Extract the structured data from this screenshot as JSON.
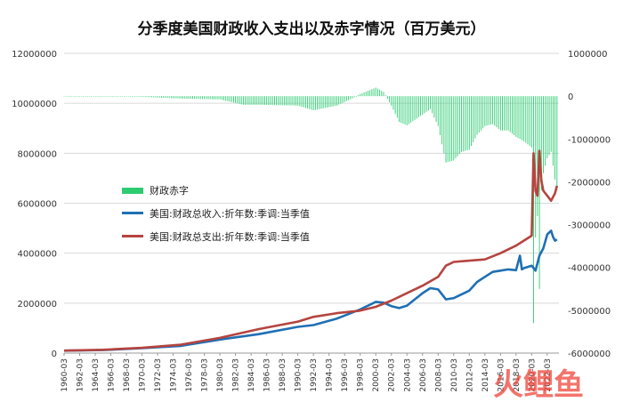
{
  "chart_data": {
    "type": "bar+line",
    "title": "分季度美国财政收入支出以及赤字情况（百万美元）",
    "x_tick_labels": [
      "1960-03",
      "1962-03",
      "1964-03",
      "1966-03",
      "1968-03",
      "1970-03",
      "1972-03",
      "1974-03",
      "1976-03",
      "1978-03",
      "1980-03",
      "1982-03",
      "1984-03",
      "1986-03",
      "1988-03",
      "1990-03",
      "1992-03",
      "1994-03",
      "1996-03",
      "1998-03",
      "2000-03",
      "2002-03",
      "2004-03",
      "2006-03",
      "2008-03",
      "2010-03",
      "2012-03",
      "2014-03",
      "2016-03",
      "2018-03",
      "2020-03",
      "2022-03"
    ],
    "y_left": {
      "min": 0,
      "max": 12000000,
      "ticks": [
        "0",
        "2000000",
        "4000000",
        "6000000",
        "8000000",
        "10000000",
        "12000000"
      ]
    },
    "y_right": {
      "min": -6000000,
      "max": 1000000,
      "ticks": [
        "-6000000",
        "-5000000",
        "-4000000",
        "-3000000",
        "-2000000",
        "-1000000",
        "0",
        "1000000"
      ]
    },
    "legend": [
      "财政赤字",
      "美国:财政总收入:折年数:季调:当季值",
      "美国:财政总支出:折年数:季调:当季值"
    ],
    "colors": {
      "deficit": "#2ecc71",
      "receipts": "#1f6fb4",
      "outlays": "#b5443f"
    },
    "series": [
      {
        "name": "美国:财政总收入:折年数:季调:当季值",
        "axis": "left",
        "points": [
          [
            1960.0,
            95000
          ],
          [
            1965.0,
            120000
          ],
          [
            1970.0,
            195000
          ],
          [
            1975.0,
            290000
          ],
          [
            1980.0,
            540000
          ],
          [
            1985.0,
            760000
          ],
          [
            1990.0,
            1050000
          ],
          [
            1992.0,
            1120000
          ],
          [
            1995.0,
            1380000
          ],
          [
            1998.0,
            1750000
          ],
          [
            2000.0,
            2050000
          ],
          [
            2001.0,
            2020000
          ],
          [
            2002.0,
            1880000
          ],
          [
            2003.0,
            1800000
          ],
          [
            2004.0,
            1900000
          ],
          [
            2006.0,
            2400000
          ],
          [
            2007.0,
            2600000
          ],
          [
            2008.0,
            2550000
          ],
          [
            2009.0,
            2150000
          ],
          [
            2010.0,
            2200000
          ],
          [
            2012.0,
            2500000
          ],
          [
            2013.0,
            2850000
          ],
          [
            2014.0,
            3050000
          ],
          [
            2015.0,
            3250000
          ],
          [
            2016.0,
            3300000
          ],
          [
            2017.0,
            3350000
          ],
          [
            2018.0,
            3320000
          ],
          [
            2018.5,
            3900000
          ],
          [
            2018.75,
            3350000
          ],
          [
            2019.0,
            3400000
          ],
          [
            2019.5,
            3450000
          ],
          [
            2020.0,
            3500000
          ],
          [
            2020.5,
            3300000
          ],
          [
            2021.0,
            3900000
          ],
          [
            2021.5,
            4200000
          ],
          [
            2022.0,
            4750000
          ],
          [
            2022.5,
            4900000
          ],
          [
            2022.75,
            4650000
          ],
          [
            2023.0,
            4500000
          ],
          [
            2023.25,
            4550000
          ]
        ]
      },
      {
        "name": "美国:财政总支出:折年数:季调:当季值",
        "axis": "left",
        "points": [
          [
            1960.0,
            98000
          ],
          [
            1965.0,
            130000
          ],
          [
            1970.0,
            210000
          ],
          [
            1975.0,
            340000
          ],
          [
            1980.0,
            610000
          ],
          [
            1985.0,
            960000
          ],
          [
            1990.0,
            1260000
          ],
          [
            1992.0,
            1450000
          ],
          [
            1995.0,
            1600000
          ],
          [
            1998.0,
            1700000
          ],
          [
            2000.0,
            1850000
          ],
          [
            2002.0,
            2100000
          ],
          [
            2004.0,
            2400000
          ],
          [
            2006.0,
            2700000
          ],
          [
            2008.0,
            3050000
          ],
          [
            2009.0,
            3500000
          ],
          [
            2010.0,
            3650000
          ],
          [
            2012.0,
            3700000
          ],
          [
            2014.0,
            3750000
          ],
          [
            2016.0,
            4000000
          ],
          [
            2018.0,
            4300000
          ],
          [
            2019.0,
            4500000
          ],
          [
            2020.0,
            4700000
          ],
          [
            2020.25,
            8000000
          ],
          [
            2020.5,
            6500000
          ],
          [
            2020.75,
            6300000
          ],
          [
            2021.0,
            8100000
          ],
          [
            2021.25,
            6900000
          ],
          [
            2021.5,
            6500000
          ],
          [
            2022.0,
            6300000
          ],
          [
            2022.5,
            6100000
          ],
          [
            2023.0,
            6400000
          ],
          [
            2023.25,
            6700000
          ]
        ]
      },
      {
        "name": "财政赤字",
        "axis": "right",
        "points": [
          [
            1960.0,
            5000
          ],
          [
            1965.0,
            -5000
          ],
          [
            1970.0,
            -15000
          ],
          [
            1975.0,
            -55000
          ],
          [
            1980.0,
            -75000
          ],
          [
            1983.0,
            -200000
          ],
          [
            1985.0,
            -200000
          ],
          [
            1990.0,
            -220000
          ],
          [
            1992.0,
            -330000
          ],
          [
            1995.0,
            -220000
          ],
          [
            1997.0,
            -50000
          ],
          [
            1998.0,
            50000
          ],
          [
            2000.0,
            200000
          ],
          [
            2001.0,
            100000
          ],
          [
            2002.0,
            -220000
          ],
          [
            2003.0,
            -600000
          ],
          [
            2004.0,
            -680000
          ],
          [
            2006.0,
            -430000
          ],
          [
            2007.0,
            -300000
          ],
          [
            2008.0,
            -700000
          ],
          [
            2009.0,
            -1550000
          ],
          [
            2010.0,
            -1500000
          ],
          [
            2011.0,
            -1300000
          ],
          [
            2012.0,
            -1250000
          ],
          [
            2013.0,
            -900000
          ],
          [
            2014.0,
            -700000
          ],
          [
            2015.0,
            -650000
          ],
          [
            2016.0,
            -800000
          ],
          [
            2017.0,
            -800000
          ],
          [
            2018.0,
            -950000
          ],
          [
            2019.0,
            -1050000
          ],
          [
            2020.0,
            -1200000
          ],
          [
            2020.25,
            -5300000
          ],
          [
            2020.5,
            -3300000
          ],
          [
            2020.75,
            -2800000
          ],
          [
            2021.0,
            -4500000
          ],
          [
            2021.25,
            -2200000
          ],
          [
            2021.5,
            -1800000
          ],
          [
            2022.0,
            -1450000
          ],
          [
            2022.5,
            -1300000
          ],
          [
            2023.0,
            -1950000
          ],
          [
            2023.25,
            -2200000
          ]
        ]
      }
    ]
  },
  "watermark": "火鲤鱼"
}
